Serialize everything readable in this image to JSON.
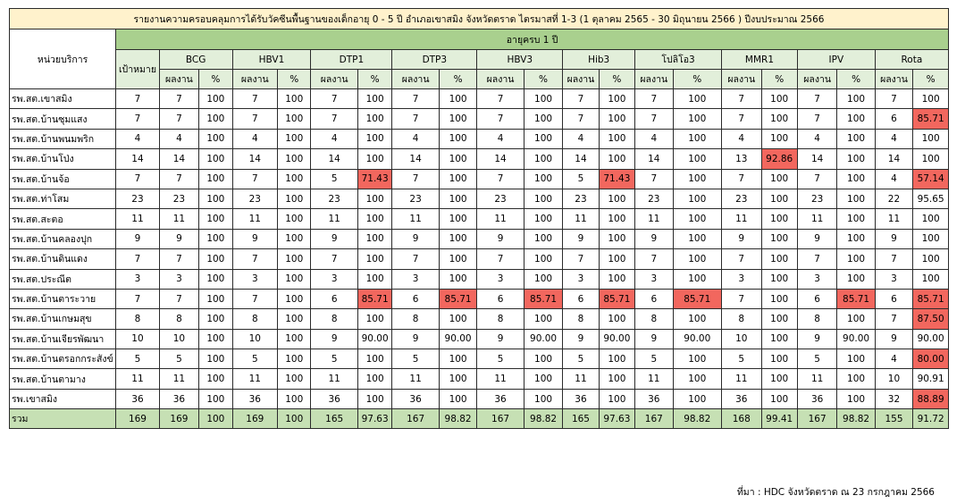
{
  "title": "รายงานความครอบคลุมการได้รับวัคซีนพื้นฐานของเด็กอายุ 0 - 5 ปี อำเภอเขาสมิง จังหวัดตราด ไตรมาสที่ 1-3 (1 ตุลาคม 2565 - 30 มิถุนายน 2566 ) ปีงบประมาณ 2566",
  "unit_header": "หน่วยบริการ",
  "age_group": "อายุครบ 1 ปี",
  "target_header": "เป้าหมาย",
  "result_header": "ผลงาน",
  "percent_header": "%",
  "vaccines": [
    "BCG",
    "HBV1",
    "DTP1",
    "DTP3",
    "HBV3",
    "Hib3",
    "โปลิโอ3",
    "MMR1",
    "IPV",
    "Rota"
  ],
  "rows": [
    {
      "name": "รพ.สต.เขาสมิง",
      "target": "7",
      "cells": [
        [
          "7",
          "100"
        ],
        [
          "7",
          "100"
        ],
        [
          "7",
          "100"
        ],
        [
          "7",
          "100"
        ],
        [
          "7",
          "100"
        ],
        [
          "7",
          "100"
        ],
        [
          "7",
          "100"
        ],
        [
          "7",
          "100"
        ],
        [
          "7",
          "100"
        ],
        [
          "7",
          "100"
        ]
      ],
      "hl": []
    },
    {
      "name": "รพ.สต.บ้านซุมแสง",
      "target": "7",
      "cells": [
        [
          "7",
          "100"
        ],
        [
          "7",
          "100"
        ],
        [
          "7",
          "100"
        ],
        [
          "7",
          "100"
        ],
        [
          "7",
          "100"
        ],
        [
          "7",
          "100"
        ],
        [
          "7",
          "100"
        ],
        [
          "7",
          "100"
        ],
        [
          "7",
          "100"
        ],
        [
          "6",
          "85.71"
        ]
      ],
      "hl": [
        9
      ]
    },
    {
      "name": "รพ.สต.บ้านพนมพริก",
      "target": "4",
      "cells": [
        [
          "4",
          "100"
        ],
        [
          "4",
          "100"
        ],
        [
          "4",
          "100"
        ],
        [
          "4",
          "100"
        ],
        [
          "4",
          "100"
        ],
        [
          "4",
          "100"
        ],
        [
          "4",
          "100"
        ],
        [
          "4",
          "100"
        ],
        [
          "4",
          "100"
        ],
        [
          "4",
          "100"
        ]
      ],
      "hl": []
    },
    {
      "name": "รพ.สต.บ้านโป่ง",
      "target": "14",
      "cells": [
        [
          "14",
          "100"
        ],
        [
          "14",
          "100"
        ],
        [
          "14",
          "100"
        ],
        [
          "14",
          "100"
        ],
        [
          "14",
          "100"
        ],
        [
          "14",
          "100"
        ],
        [
          "14",
          "100"
        ],
        [
          "13",
          "92.86"
        ],
        [
          "14",
          "100"
        ],
        [
          "14",
          "100"
        ]
      ],
      "hl": [
        7
      ]
    },
    {
      "name": "รพ.สต.บ้านจ้อ",
      "target": "7",
      "cells": [
        [
          "7",
          "100"
        ],
        [
          "7",
          "100"
        ],
        [
          "5",
          "71.43"
        ],
        [
          "7",
          "100"
        ],
        [
          "7",
          "100"
        ],
        [
          "5",
          "71.43"
        ],
        [
          "7",
          "100"
        ],
        [
          "7",
          "100"
        ],
        [
          "7",
          "100"
        ],
        [
          "4",
          "57.14"
        ]
      ],
      "hl": [
        2,
        5,
        9
      ]
    },
    {
      "name": "รพ.สต.ท่าโสม",
      "target": "23",
      "cells": [
        [
          "23",
          "100"
        ],
        [
          "23",
          "100"
        ],
        [
          "23",
          "100"
        ],
        [
          "23",
          "100"
        ],
        [
          "23",
          "100"
        ],
        [
          "23",
          "100"
        ],
        [
          "23",
          "100"
        ],
        [
          "23",
          "100"
        ],
        [
          "23",
          "100"
        ],
        [
          "22",
          "95.65"
        ]
      ],
      "hl": []
    },
    {
      "name": "รพ.สต.สะตอ",
      "target": "11",
      "cells": [
        [
          "11",
          "100"
        ],
        [
          "11",
          "100"
        ],
        [
          "11",
          "100"
        ],
        [
          "11",
          "100"
        ],
        [
          "11",
          "100"
        ],
        [
          "11",
          "100"
        ],
        [
          "11",
          "100"
        ],
        [
          "11",
          "100"
        ],
        [
          "11",
          "100"
        ],
        [
          "11",
          "100"
        ]
      ],
      "hl": []
    },
    {
      "name": "รพ.สต.บ้านคลองปุก",
      "target": "9",
      "cells": [
        [
          "9",
          "100"
        ],
        [
          "9",
          "100"
        ],
        [
          "9",
          "100"
        ],
        [
          "9",
          "100"
        ],
        [
          "9",
          "100"
        ],
        [
          "9",
          "100"
        ],
        [
          "9",
          "100"
        ],
        [
          "9",
          "100"
        ],
        [
          "9",
          "100"
        ],
        [
          "9",
          "100"
        ]
      ],
      "hl": []
    },
    {
      "name": "รพ.สต.บ้านดินแดง",
      "target": "7",
      "cells": [
        [
          "7",
          "100"
        ],
        [
          "7",
          "100"
        ],
        [
          "7",
          "100"
        ],
        [
          "7",
          "100"
        ],
        [
          "7",
          "100"
        ],
        [
          "7",
          "100"
        ],
        [
          "7",
          "100"
        ],
        [
          "7",
          "100"
        ],
        [
          "7",
          "100"
        ],
        [
          "7",
          "100"
        ]
      ],
      "hl": []
    },
    {
      "name": "รพ.สต.ประณีต",
      "target": "3",
      "cells": [
        [
          "3",
          "100"
        ],
        [
          "3",
          "100"
        ],
        [
          "3",
          "100"
        ],
        [
          "3",
          "100"
        ],
        [
          "3",
          "100"
        ],
        [
          "3",
          "100"
        ],
        [
          "3",
          "100"
        ],
        [
          "3",
          "100"
        ],
        [
          "3",
          "100"
        ],
        [
          "3",
          "100"
        ]
      ],
      "hl": []
    },
    {
      "name": "รพ.สต.บ้านตาระวาย",
      "target": "7",
      "cells": [
        [
          "7",
          "100"
        ],
        [
          "7",
          "100"
        ],
        [
          "6",
          "85.71"
        ],
        [
          "6",
          "85.71"
        ],
        [
          "6",
          "85.71"
        ],
        [
          "6",
          "85.71"
        ],
        [
          "6",
          "85.71"
        ],
        [
          "7",
          "100"
        ],
        [
          "6",
          "85.71"
        ],
        [
          "6",
          "85.71"
        ]
      ],
      "hl": [
        2,
        3,
        4,
        5,
        6,
        8,
        9
      ]
    },
    {
      "name": "รพ.สต.บ้านเกษมสุข",
      "target": "8",
      "cells": [
        [
          "8",
          "100"
        ],
        [
          "8",
          "100"
        ],
        [
          "8",
          "100"
        ],
        [
          "8",
          "100"
        ],
        [
          "8",
          "100"
        ],
        [
          "8",
          "100"
        ],
        [
          "8",
          "100"
        ],
        [
          "8",
          "100"
        ],
        [
          "8",
          "100"
        ],
        [
          "7",
          "87.50"
        ]
      ],
      "hl": [
        9
      ]
    },
    {
      "name": "รพ.สต.บ้านเจียรพัฒนา",
      "target": "10",
      "cells": [
        [
          "10",
          "100"
        ],
        [
          "10",
          "100"
        ],
        [
          "9",
          "90.00"
        ],
        [
          "9",
          "90.00"
        ],
        [
          "9",
          "90.00"
        ],
        [
          "9",
          "90.00"
        ],
        [
          "9",
          "90.00"
        ],
        [
          "10",
          "100"
        ],
        [
          "9",
          "90.00"
        ],
        [
          "9",
          "90.00"
        ]
      ],
      "hl": []
    },
    {
      "name": "รพ.สต.บ้านตรอกกระสังข์",
      "target": "5",
      "cells": [
        [
          "5",
          "100"
        ],
        [
          "5",
          "100"
        ],
        [
          "5",
          "100"
        ],
        [
          "5",
          "100"
        ],
        [
          "5",
          "100"
        ],
        [
          "5",
          "100"
        ],
        [
          "5",
          "100"
        ],
        [
          "5",
          "100"
        ],
        [
          "5",
          "100"
        ],
        [
          "4",
          "80.00"
        ]
      ],
      "hl": [
        9
      ]
    },
    {
      "name": "รพ.สต.บ้านตามาง",
      "target": "11",
      "cells": [
        [
          "11",
          "100"
        ],
        [
          "11",
          "100"
        ],
        [
          "11",
          "100"
        ],
        [
          "11",
          "100"
        ],
        [
          "11",
          "100"
        ],
        [
          "11",
          "100"
        ],
        [
          "11",
          "100"
        ],
        [
          "11",
          "100"
        ],
        [
          "11",
          "100"
        ],
        [
          "10",
          "90.91"
        ]
      ],
      "hl": []
    },
    {
      "name": "รพ.เขาสมิง",
      "target": "36",
      "cells": [
        [
          "36",
          "100"
        ],
        [
          "36",
          "100"
        ],
        [
          "36",
          "100"
        ],
        [
          "36",
          "100"
        ],
        [
          "36",
          "100"
        ],
        [
          "36",
          "100"
        ],
        [
          "36",
          "100"
        ],
        [
          "36",
          "100"
        ],
        [
          "36",
          "100"
        ],
        [
          "32",
          "88.89"
        ]
      ],
      "hl": [
        9
      ]
    }
  ],
  "total": {
    "name": "รวม",
    "target": "169",
    "cells": [
      [
        "169",
        "100"
      ],
      [
        "169",
        "100"
      ],
      [
        "165",
        "97.63"
      ],
      [
        "167",
        "98.82"
      ],
      [
        "167",
        "98.82"
      ],
      [
        "165",
        "97.63"
      ],
      [
        "167",
        "98.82"
      ],
      [
        "168",
        "99.41"
      ],
      [
        "167",
        "98.82"
      ],
      [
        "155",
        "91.72"
      ]
    ]
  },
  "source": "ที่มา : HDC จังหวัดตราด ณ 23 กรกฎาคม 2566",
  "colors": {
    "title_bg": "#fff2cc",
    "header_green": "#a9d08e",
    "header_light": "#e2efda",
    "total_bg": "#c6e0b4",
    "highlight_red": "#f2675e"
  }
}
